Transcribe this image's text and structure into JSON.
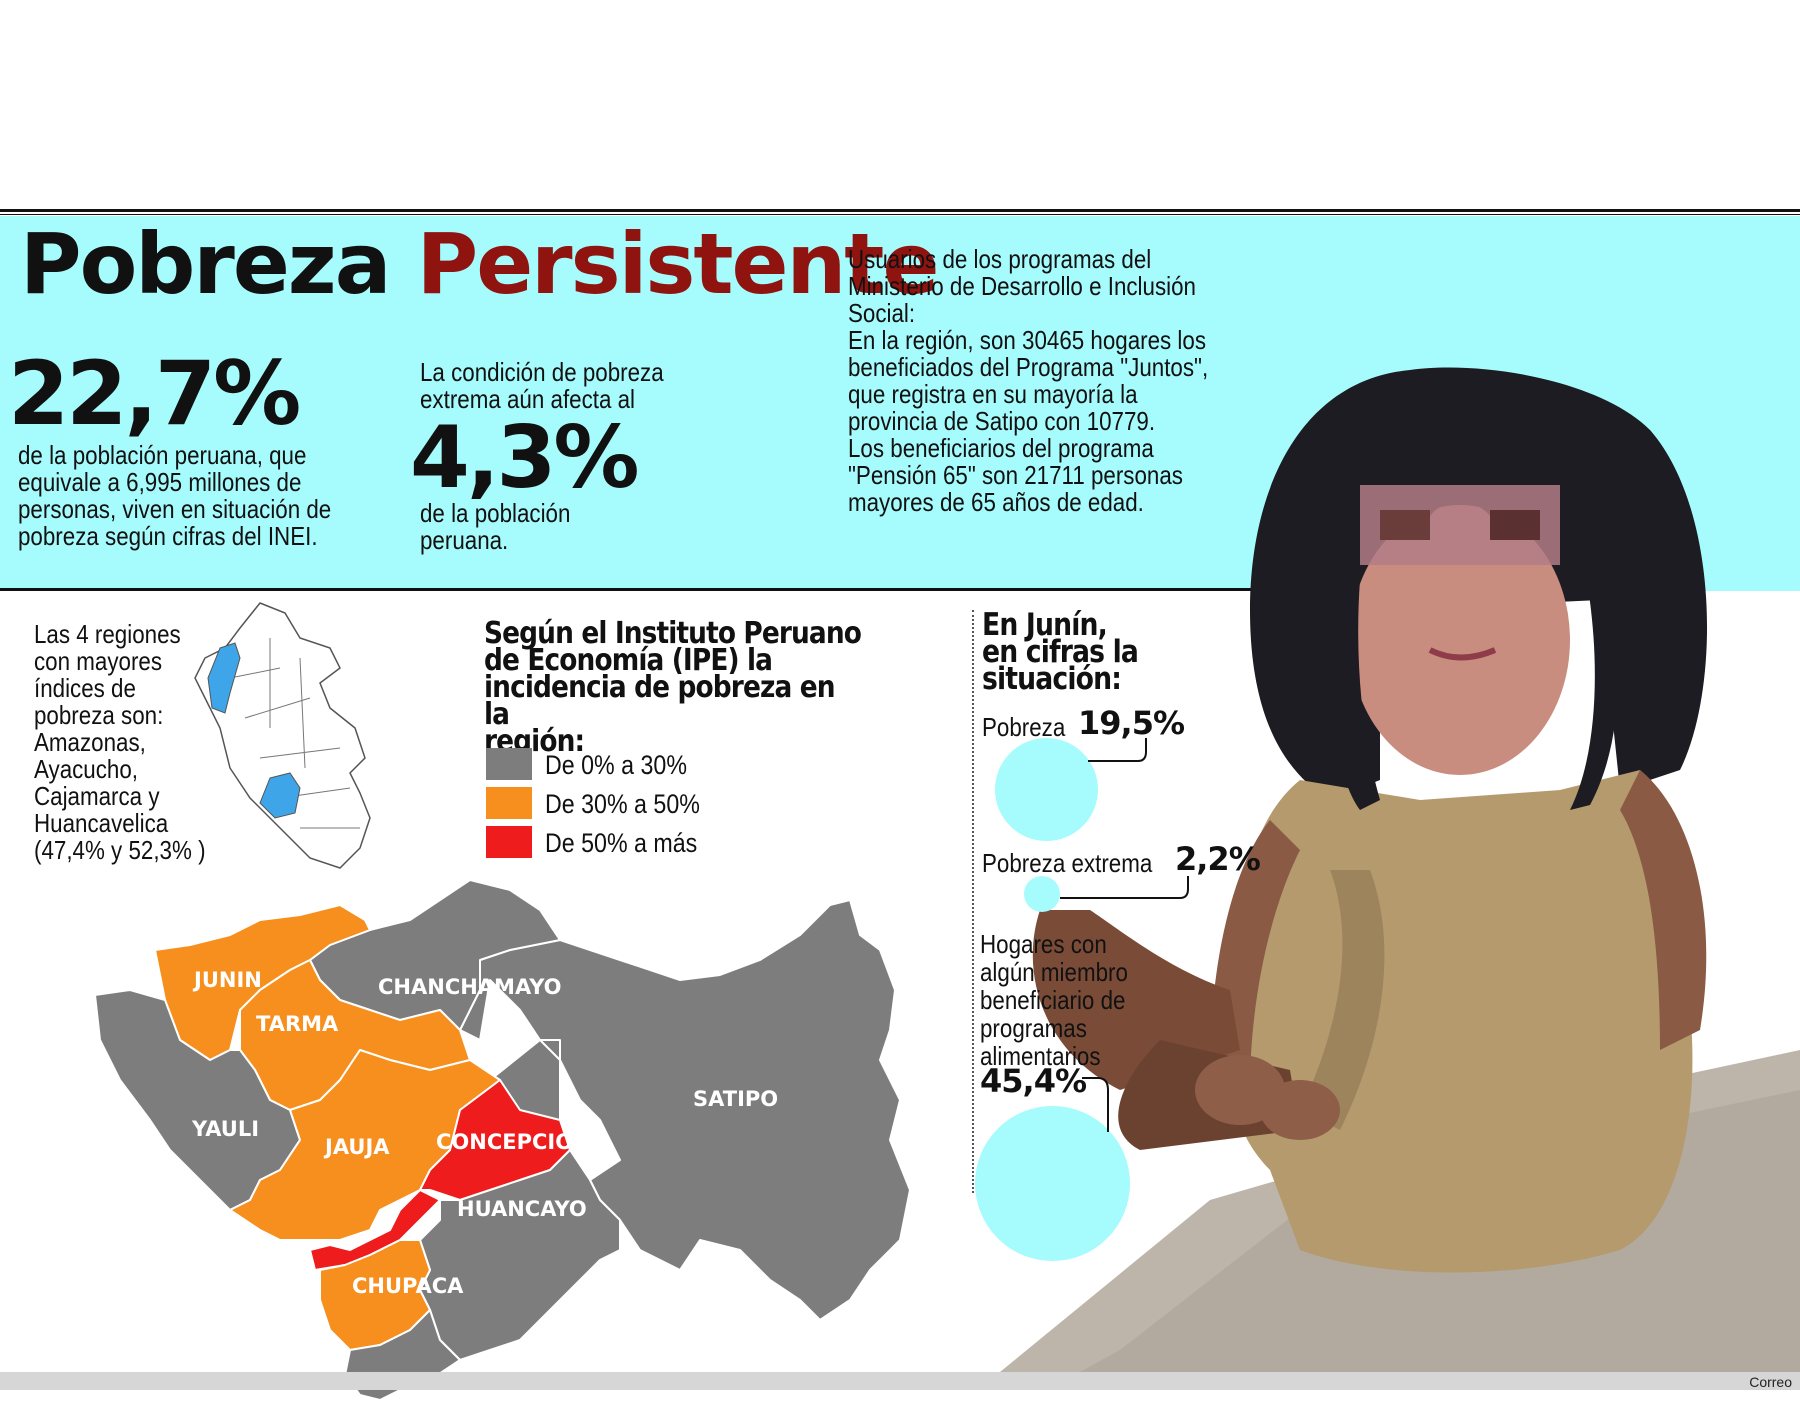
{
  "header": {
    "title_part1": "Pobreza",
    "title_part2": "Persistente"
  },
  "stat_1": {
    "value": "22,7%",
    "text": "de la población peruana, que equivale a 6,995 millones de personas, viven en situación de pobreza según cifras del INEI."
  },
  "stat_2": {
    "intro": "La condición de pobreza extrema aún afecta al",
    "value": "4,3%",
    "text": "de la población peruana."
  },
  "usuarios": {
    "lines": [
      "Usuarios de los programas del",
      "Ministerio de Desarrollo e Inclusión",
      "Social:",
      "En la región, son 30465 hogares los",
      "beneficiados del Programa \"Juntos\",",
      "que registra en su mayoría la",
      "provincia de Satipo con 10779.",
      "Los beneficiarios del programa",
      "\"Pensión 65\" son 21711 personas",
      "mayores de 65 años de edad."
    ]
  },
  "regiones": {
    "lines": [
      "Las 4 regiones",
      "con mayores",
      "índices de",
      "pobreza son:",
      "Amazonas,",
      "Ayacucho,",
      "Cajamarca y",
      "Huancavelica",
      "(47,4% y 52,3% )"
    ]
  },
  "ipe": {
    "title_lines": [
      "Según el Instituto Peruano",
      "de Economía (IPE) la",
      "incidencia de pobreza en la",
      "región:"
    ],
    "legend": [
      {
        "label": "De 0% a 30%",
        "color": "#7d7d7d"
      },
      {
        "label": "De 30% a 50%",
        "color": "#f78f1e"
      },
      {
        "label": "De 50% a más",
        "color": "#ee1c1c"
      }
    ]
  },
  "map": {
    "provinces": [
      {
        "name": "JUNIN",
        "category": "De 30% a 50%"
      },
      {
        "name": "TARMA",
        "category": "De 30% a 50%"
      },
      {
        "name": "CHANCHAMAYO",
        "category": "De 0% a 30%"
      },
      {
        "name": "YAULI",
        "category": "De 0% a 30%"
      },
      {
        "name": "JAUJA",
        "category": "De 30% a 50%"
      },
      {
        "name": "CONCEPCIÓN",
        "category": "De 50% a más"
      },
      {
        "name": "SATIPO",
        "category": "De 0% a 30%"
      },
      {
        "name": "HUANCAYO",
        "category": "De 0% a 30%"
      },
      {
        "name": "CHUPACA",
        "category": "De 30% a 50%"
      }
    ],
    "highlight_color": "#3ea6e8"
  },
  "junin": {
    "title_lines": [
      "En Junín,",
      "en cifras la",
      "situación:"
    ],
    "pobreza": {
      "label": "Pobreza",
      "value": "19,5%"
    },
    "pobreza_extrema": {
      "label": "Pobreza extrema",
      "value": "2,2%"
    },
    "hogares": {
      "label_lines": [
        "Hogares con",
        "algún miembro",
        "beneficiario de",
        "programas",
        "alimentarios"
      ],
      "value": "45,4%"
    },
    "circle_color": "#a6fbfc"
  },
  "credit": "Correo"
}
